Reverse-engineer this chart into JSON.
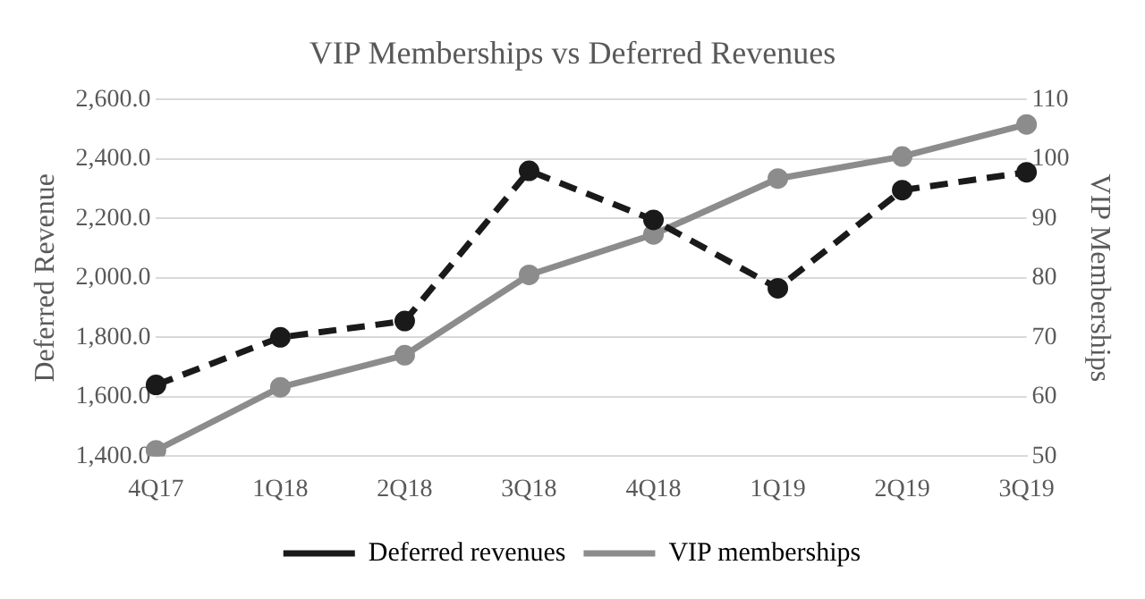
{
  "chart_data": {
    "type": "line",
    "title": "VIP Memberships vs Deferred Revenues",
    "ylabel": "Deferred Revenue",
    "y2label": "VIP Memberships",
    "categories": [
      "4Q17",
      "1Q18",
      "2Q18",
      "3Q18",
      "4Q18",
      "1Q19",
      "2Q19",
      "3Q19"
    ],
    "series": [
      {
        "name": "Deferred revenues",
        "color": "#1a1a1a",
        "line_style": "dashed",
        "marker": "circle",
        "values": [
          1640,
          1800,
          1855,
          2360,
          2195,
          1965,
          2295,
          2355
        ]
      },
      {
        "name": "VIP memberships",
        "color": "#8c8c8c",
        "line_style": "solid",
        "marker": "circle",
        "axis": "y2",
        "values": [
          51,
          61.6,
          67,
          80.5,
          87.3,
          96.7,
          100.4,
          105.8
        ]
      }
    ],
    "ylim": [
      1400,
      2600
    ],
    "yticks": [
      {
        "value": 1400,
        "label": "1,400.0"
      },
      {
        "value": 1600,
        "label": "1,600.0"
      },
      {
        "value": 1800,
        "label": "1,800.0"
      },
      {
        "value": 2000,
        "label": "2,000.0"
      },
      {
        "value": 2200,
        "label": "2,200.0"
      },
      {
        "value": 2400,
        "label": "2,400.0"
      },
      {
        "value": 2600,
        "label": "2,600.0"
      }
    ],
    "y2lim": [
      50,
      110
    ],
    "y2ticks": [
      50,
      60,
      70,
      80,
      90,
      100,
      110
    ],
    "grid": "y",
    "legend": "bottom"
  }
}
